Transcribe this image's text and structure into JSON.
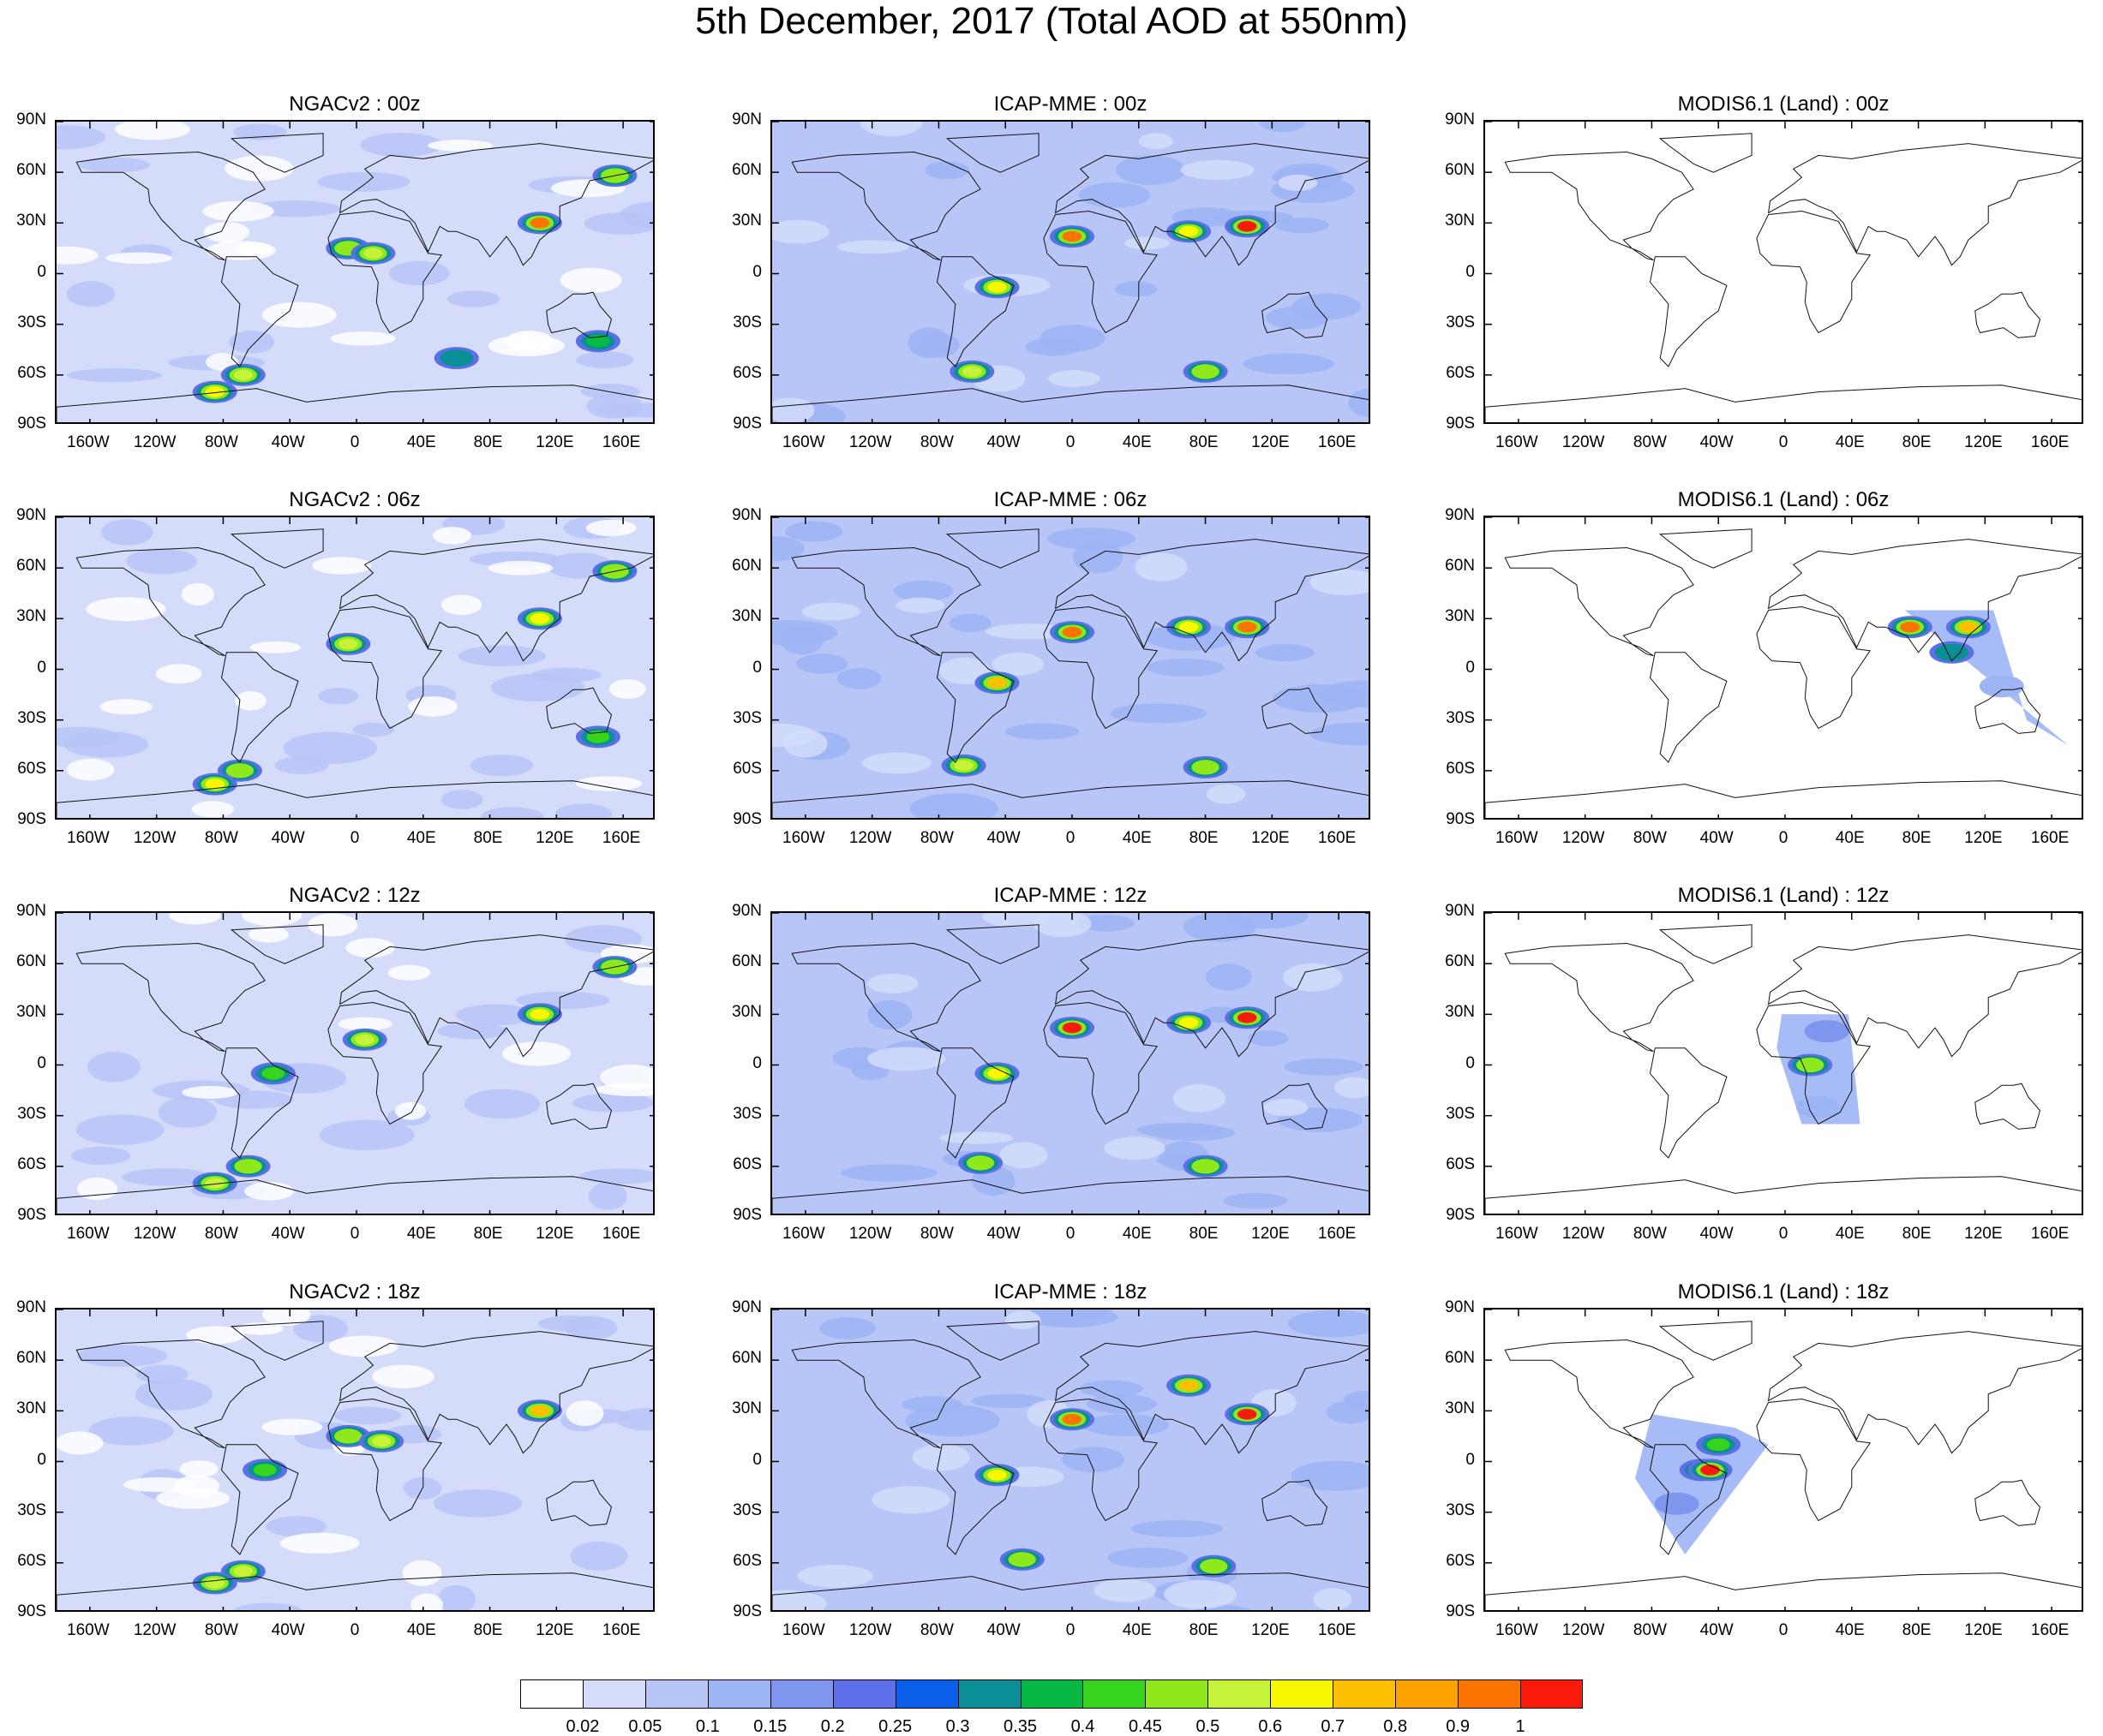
{
  "title": "5th December, 2017 (Total AOD at 550nm)",
  "columns": [
    "NGACv2",
    "ICAP-MME",
    "MODIS6.1 (Land)"
  ],
  "rows": [
    "00z",
    "06z",
    "12z",
    "18z"
  ],
  "panels": [
    {
      "title": "NGACv2 : 00z",
      "model": "NGACv2",
      "time": "00z"
    },
    {
      "title": "ICAP-MME : 00z",
      "model": "ICAP-MME",
      "time": "00z"
    },
    {
      "title": "MODIS6.1 (Land) : 00z",
      "model": "MODIS6.1 (Land)",
      "time": "00z"
    },
    {
      "title": "NGACv2 : 06z",
      "model": "NGACv2",
      "time": "06z"
    },
    {
      "title": "ICAP-MME : 06z",
      "model": "ICAP-MME",
      "time": "06z"
    },
    {
      "title": "MODIS6.1 (Land) : 06z",
      "model": "MODIS6.1 (Land)",
      "time": "06z"
    },
    {
      "title": "NGACv2 : 12z",
      "model": "NGACv2",
      "time": "12z"
    },
    {
      "title": "ICAP-MME : 12z",
      "model": "ICAP-MME",
      "time": "12z"
    },
    {
      "title": "MODIS6.1 (Land) : 12z",
      "model": "MODIS6.1 (Land)",
      "time": "12z"
    },
    {
      "title": "NGACv2 : 18z",
      "model": "NGACv2",
      "time": "18z"
    },
    {
      "title": "ICAP-MME : 18z",
      "model": "ICAP-MME",
      "time": "18z"
    },
    {
      "title": "MODIS6.1 (Land) : 18z",
      "model": "MODIS6.1 (Land)",
      "time": "18z"
    }
  ],
  "lat_ticks": [
    "90N",
    "60N",
    "30N",
    "0",
    "30S",
    "60S",
    "90S"
  ],
  "lon_ticks": [
    "160W",
    "120W",
    "80W",
    "40W",
    "0",
    "40E",
    "80E",
    "120E",
    "160E"
  ],
  "colorbar": {
    "labels": [
      "0.02",
      "0.05",
      "0.1",
      "0.15",
      "0.2",
      "0.25",
      "0.3",
      "0.35",
      "0.4",
      "0.45",
      "0.5",
      "0.6",
      "0.7",
      "0.8",
      "0.9",
      "1"
    ],
    "colors": [
      "#ffffff",
      "#d4dcfa",
      "#b7c5f7",
      "#9db4f5",
      "#7f96ee",
      "#5c6fe8",
      "#0a5ee8",
      "#0b8f96",
      "#07b845",
      "#36d41c",
      "#8ee81c",
      "#c6f23a",
      "#f7f702",
      "#fdc000",
      "#fba100",
      "#fb7300",
      "#f81b0b"
    ]
  },
  "chart_data": {
    "type": "heatmap",
    "title": "5th December, 2017 (Total AOD at 550nm)",
    "variable": "Total AOD at 550nm",
    "date": "5th December, 2017",
    "x_range": [
      -180,
      180
    ],
    "y_range": [
      -90,
      90
    ],
    "levels": [
      0.02,
      0.05,
      0.1,
      0.15,
      0.2,
      0.25,
      0.3,
      0.35,
      0.4,
      0.45,
      0.5,
      0.6,
      0.7,
      0.8,
      0.9,
      1
    ],
    "panels": [
      {
        "model": "NGACv2",
        "time": "00z",
        "hotspots": [
          {
            "lon": -5,
            "lat": 15,
            "aod": 0.45
          },
          {
            "lon": 10,
            "lat": 12,
            "aod": 0.5
          },
          {
            "lon": 110,
            "lat": 30,
            "aod": 0.9
          },
          {
            "lon": 155,
            "lat": 58,
            "aod": 0.45
          },
          {
            "lon": -68,
            "lat": -60,
            "aod": 0.5
          },
          {
            "lon": -85,
            "lat": -70,
            "aod": 0.6
          },
          {
            "lon": 60,
            "lat": -50,
            "aod": 0.3
          },
          {
            "lon": 145,
            "lat": -40,
            "aod": 0.35
          }
        ]
      },
      {
        "model": "ICAP-MME",
        "time": "00z",
        "hotspots": [
          {
            "lon": 0,
            "lat": 22,
            "aod": 0.9
          },
          {
            "lon": 70,
            "lat": 25,
            "aod": 0.6
          },
          {
            "lon": 105,
            "lat": 28,
            "aod": 1
          },
          {
            "lon": -45,
            "lat": -8,
            "aod": 0.6
          },
          {
            "lon": -60,
            "lat": -58,
            "aod": 0.5
          },
          {
            "lon": 80,
            "lat": -58,
            "aod": 0.45
          }
        ]
      },
      {
        "model": "MODIS6.1 (Land)",
        "time": "00z",
        "hotspots": []
      },
      {
        "model": "NGACv2",
        "time": "06z",
        "hotspots": [
          {
            "lon": -5,
            "lat": 15,
            "aod": 0.5
          },
          {
            "lon": 110,
            "lat": 30,
            "aod": 0.6
          },
          {
            "lon": 155,
            "lat": 58,
            "aod": 0.45
          },
          {
            "lon": -70,
            "lat": -60,
            "aod": 0.45
          },
          {
            "lon": -85,
            "lat": -68,
            "aod": 0.6
          },
          {
            "lon": 145,
            "lat": -40,
            "aod": 0.4
          }
        ]
      },
      {
        "model": "ICAP-MME",
        "time": "06z",
        "hotspots": [
          {
            "lon": 0,
            "lat": 22,
            "aod": 0.9
          },
          {
            "lon": 70,
            "lat": 25,
            "aod": 0.6
          },
          {
            "lon": 105,
            "lat": 25,
            "aod": 0.9
          },
          {
            "lon": -45,
            "lat": -8,
            "aod": 0.7
          },
          {
            "lon": -65,
            "lat": -57,
            "aod": 0.5
          },
          {
            "lon": 80,
            "lat": -58,
            "aod": 0.45
          }
        ]
      },
      {
        "model": "MODIS6.1 (Land)",
        "time": "06z",
        "hotspots": [
          {
            "lon": 110,
            "lat": 25,
            "aod": 0.7
          },
          {
            "lon": 75,
            "lat": 25,
            "aod": 0.9
          },
          {
            "lon": 100,
            "lat": 10,
            "aod": 0.3
          },
          {
            "lon": 130,
            "lat": -10,
            "aod": 0.1
          }
        ]
      },
      {
        "model": "NGACv2",
        "time": "12z",
        "hotspots": [
          {
            "lon": 5,
            "lat": 15,
            "aod": 0.5
          },
          {
            "lon": 110,
            "lat": 30,
            "aod": 0.6
          },
          {
            "lon": 155,
            "lat": 58,
            "aod": 0.45
          },
          {
            "lon": -65,
            "lat": -60,
            "aod": 0.45
          },
          {
            "lon": -85,
            "lat": -70,
            "aod": 0.5
          },
          {
            "lon": -50,
            "lat": -5,
            "aod": 0.4
          }
        ]
      },
      {
        "model": "ICAP-MME",
        "time": "12z",
        "hotspots": [
          {
            "lon": 0,
            "lat": 22,
            "aod": 1
          },
          {
            "lon": 70,
            "lat": 25,
            "aod": 0.6
          },
          {
            "lon": 105,
            "lat": 28,
            "aod": 1
          },
          {
            "lon": -45,
            "lat": -5,
            "aod": 0.6
          },
          {
            "lon": -55,
            "lat": -58,
            "aod": 0.45
          },
          {
            "lon": 80,
            "lat": -60,
            "aod": 0.45
          }
        ]
      },
      {
        "model": "MODIS6.1 (Land)",
        "time": "12z",
        "hotspots": [
          {
            "lon": 15,
            "lat": 0,
            "aod": 0.45
          },
          {
            "lon": 25,
            "lat": 20,
            "aod": 0.15
          },
          {
            "lon": 20,
            "lat": -25,
            "aod": 0.1
          }
        ]
      },
      {
        "model": "NGACv2",
        "time": "18z",
        "hotspots": [
          {
            "lon": -5,
            "lat": 15,
            "aod": 0.45
          },
          {
            "lon": 15,
            "lat": 12,
            "aod": 0.5
          },
          {
            "lon": 110,
            "lat": 30,
            "aod": 0.7
          },
          {
            "lon": -55,
            "lat": -5,
            "aod": 0.4
          },
          {
            "lon": -68,
            "lat": -65,
            "aod": 0.5
          },
          {
            "lon": -85,
            "lat": -72,
            "aod": 0.5
          }
        ]
      },
      {
        "model": "ICAP-MME",
        "time": "18z",
        "hotspots": [
          {
            "lon": 0,
            "lat": 25,
            "aod": 0.9
          },
          {
            "lon": 70,
            "lat": 45,
            "aod": 0.7
          },
          {
            "lon": 105,
            "lat": 28,
            "aod": 1
          },
          {
            "lon": -45,
            "lat": -8,
            "aod": 0.6
          },
          {
            "lon": -30,
            "lat": -58,
            "aod": 0.45
          },
          {
            "lon": 85,
            "lat": -62,
            "aod": 0.45
          }
        ]
      },
      {
        "model": "MODIS6.1 (Land)",
        "time": "18z",
        "hotspots": [
          {
            "lon": -50,
            "lat": -5,
            "aod": 0.35
          },
          {
            "lon": -40,
            "lat": 10,
            "aod": 0.4
          },
          {
            "lon": -45,
            "lat": -5,
            "aod": 1
          },
          {
            "lon": -65,
            "lat": -25,
            "aod": 0.15
          }
        ]
      }
    ]
  }
}
